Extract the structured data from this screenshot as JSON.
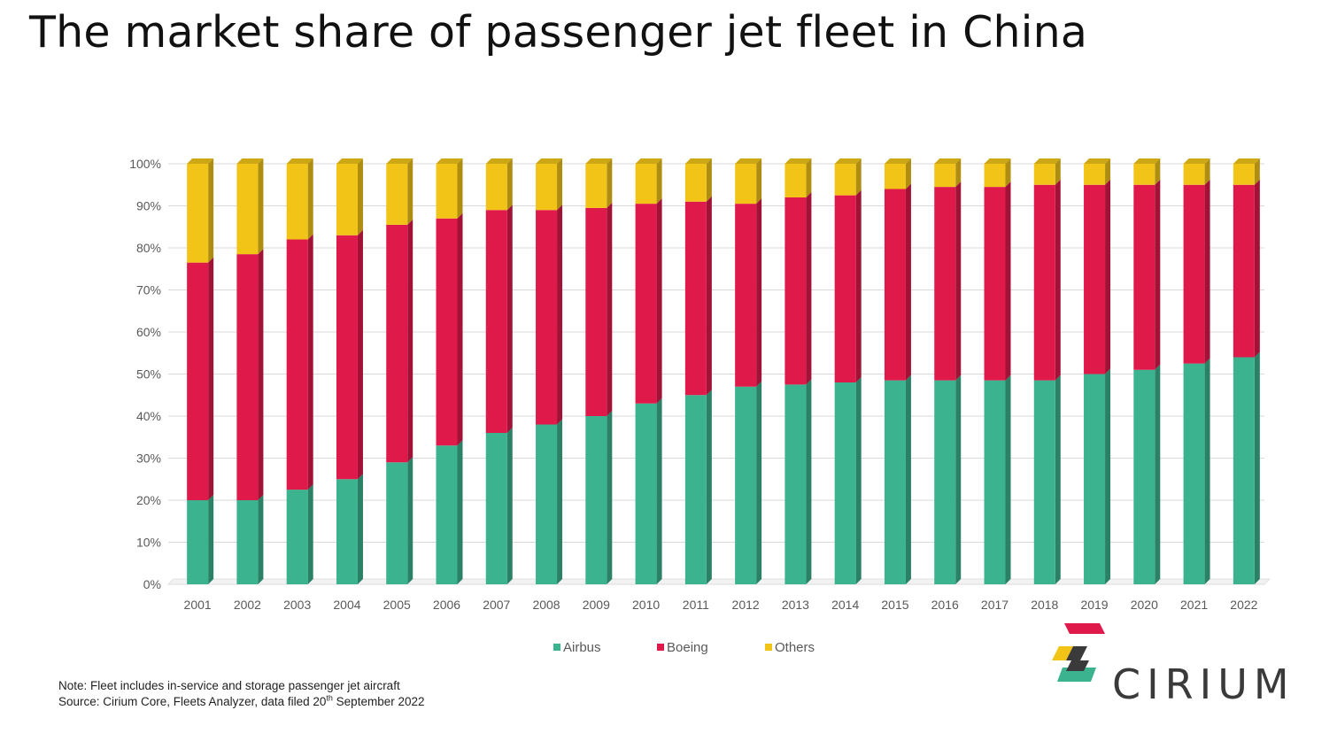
{
  "title": "The market share of passenger jet fleet in China",
  "chart_data": {
    "type": "bar",
    "stacked": true,
    "percent": true,
    "categories": [
      "2001",
      "2002",
      "2003",
      "2004",
      "2005",
      "2006",
      "2007",
      "2008",
      "2009",
      "2010",
      "2011",
      "2012",
      "2013",
      "2014",
      "2015",
      "2016",
      "2017",
      "2018",
      "2019",
      "2020",
      "2021",
      "2022"
    ],
    "series": [
      {
        "name": "Airbus",
        "color": "#3bb38e",
        "values": [
          20,
          20,
          22.5,
          25,
          29,
          33,
          36,
          38,
          40,
          43,
          45,
          47,
          47.5,
          48,
          48.5,
          48.5,
          48.5,
          48.5,
          50,
          51,
          52.5,
          54
        ]
      },
      {
        "name": "Boeing",
        "color": "#e0194b",
        "values": [
          56.5,
          58.5,
          59.5,
          58,
          56.5,
          54,
          53,
          51,
          49.5,
          47.5,
          46,
          43.5,
          44.5,
          44.5,
          45.5,
          46,
          46,
          46.5,
          45,
          44,
          42.5,
          41
        ]
      },
      {
        "name": "Others",
        "color": "#f2c417",
        "values": [
          23.5,
          21.5,
          18,
          17,
          14.5,
          13,
          11,
          11,
          10.5,
          9.5,
          9,
          9.5,
          8,
          7.5,
          6,
          5.5,
          5.5,
          5,
          5,
          5,
          5,
          5
        ]
      }
    ],
    "ylim": [
      0,
      100
    ],
    "yticks": [
      "0%",
      "10%",
      "20%",
      "30%",
      "40%",
      "50%",
      "60%",
      "70%",
      "80%",
      "90%",
      "100%"
    ],
    "grid": true,
    "legend_position": "bottom"
  },
  "note_line1": "Note: Fleet includes in-service and storage passenger jet aircraft",
  "source_prefix": "Source: Cirium Core, Fleets Analyzer, data filed 20",
  "source_sup": "th",
  "source_suffix": " September 2022",
  "logo": {
    "text": "CIRIUM",
    "colors": [
      "#e0194b",
      "#f2c417",
      "#3a3a3a",
      "#3bb38e"
    ]
  }
}
